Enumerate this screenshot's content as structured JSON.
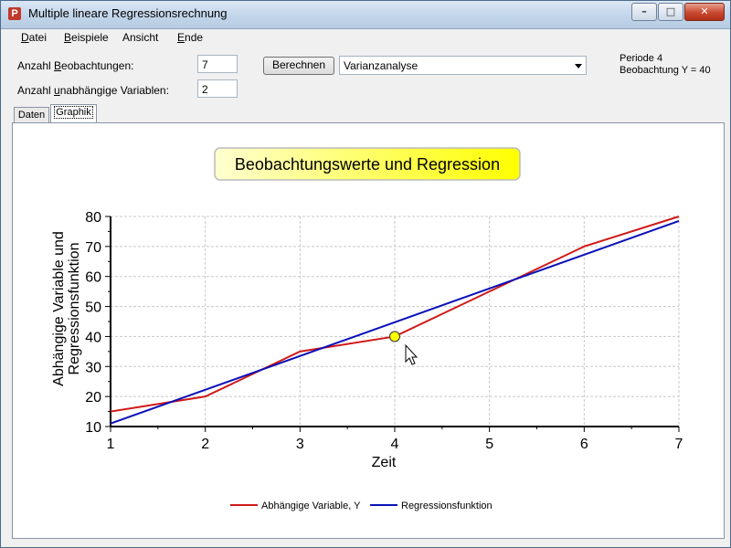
{
  "window": {
    "title": "Multiple lineare Regressionsrechnung"
  },
  "menu": [
    {
      "ul": "D",
      "rest": "atei"
    },
    {
      "ul": "B",
      "rest": "eispiele"
    },
    {
      "ul": "",
      "rest": "Ansicht"
    },
    {
      "ul": "E",
      "rest": "nde"
    }
  ],
  "form": {
    "beobachtungen_pre": "Anzahl ",
    "beobachtungen_ul": "B",
    "beobachtungen_post": "eobachtungen:",
    "beobachtungen_value": "7",
    "variablen_pre": "Anzahl ",
    "variablen_ul": "u",
    "variablen_post": "nabhängige Variablen:",
    "variablen_value": "2",
    "berechnen_label": "Berechnen",
    "analysis_selected": "Varianzanalyse"
  },
  "info": {
    "line1": "Periode 4",
    "line2": "Beobachtung Y = 40"
  },
  "tabs": {
    "daten": "Daten",
    "graphik": "Graphik"
  },
  "chart_data": {
    "type": "line",
    "title": "Beobachtungswerte und Regression",
    "xlabel": "Zeit",
    "ylabel_line1": "Abhängige Variable und",
    "ylabel_line2": "Regressionsfunktion",
    "xlim": [
      1,
      7
    ],
    "ylim": [
      10,
      80
    ],
    "xticks": [
      1,
      2,
      3,
      4,
      5,
      6,
      7
    ],
    "yticks": [
      10,
      20,
      30,
      40,
      50,
      60,
      70,
      80
    ],
    "grid": true,
    "legend_position": "bottom",
    "highlight": {
      "x": 4,
      "y": 40
    },
    "series": [
      {
        "name": "Abhängige Variable, Y",
        "color": "#d01818",
        "x": [
          1,
          2,
          3,
          4,
          5,
          6,
          7
        ],
        "y": [
          15,
          20,
          35,
          40,
          55,
          70,
          80
        ]
      },
      {
        "name": "Regressionsfunktion",
        "color": "#0a10b8",
        "x": [
          1,
          7
        ],
        "y": [
          11,
          78.5
        ]
      }
    ]
  }
}
